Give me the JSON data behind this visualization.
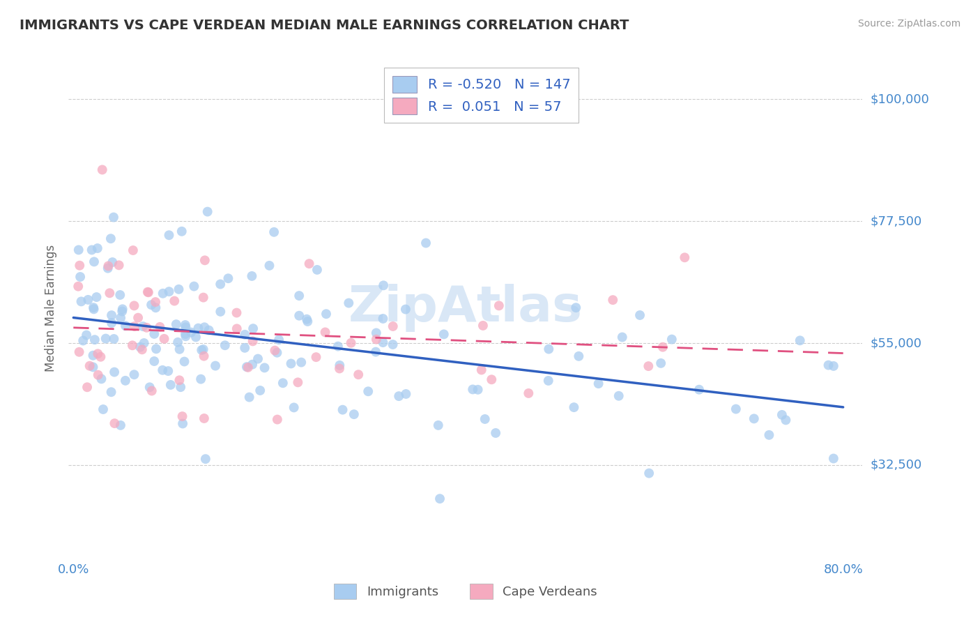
{
  "title": "IMMIGRANTS VS CAPE VERDEAN MEDIAN MALE EARNINGS CORRELATION CHART",
  "source": "Source: ZipAtlas.com",
  "ylabel": "Median Male Earnings",
  "xlim": [
    -0.005,
    0.82
  ],
  "ylim": [
    15000,
    108000
  ],
  "yticks": [
    32500,
    55000,
    77500,
    100000
  ],
  "ytick_labels": [
    "$32,500",
    "$55,000",
    "$77,500",
    "$100,000"
  ],
  "immigrants_R": -0.52,
  "immigrants_N": 147,
  "capeverdean_R": 0.051,
  "capeverdean_N": 57,
  "blue_scatter_color": "#A8CCF0",
  "blue_line_color": "#3060C0",
  "pink_scatter_color": "#F5AABF",
  "pink_line_color": "#E05080",
  "title_color": "#333333",
  "axis_label_color": "#666666",
  "tick_label_color": "#4488CC",
  "grid_color": "#CCCCCC",
  "background_color": "#FFFFFF",
  "legend_R_color": "#3060C0",
  "watermark_color": "#C0D8F0",
  "source_color": "#999999"
}
